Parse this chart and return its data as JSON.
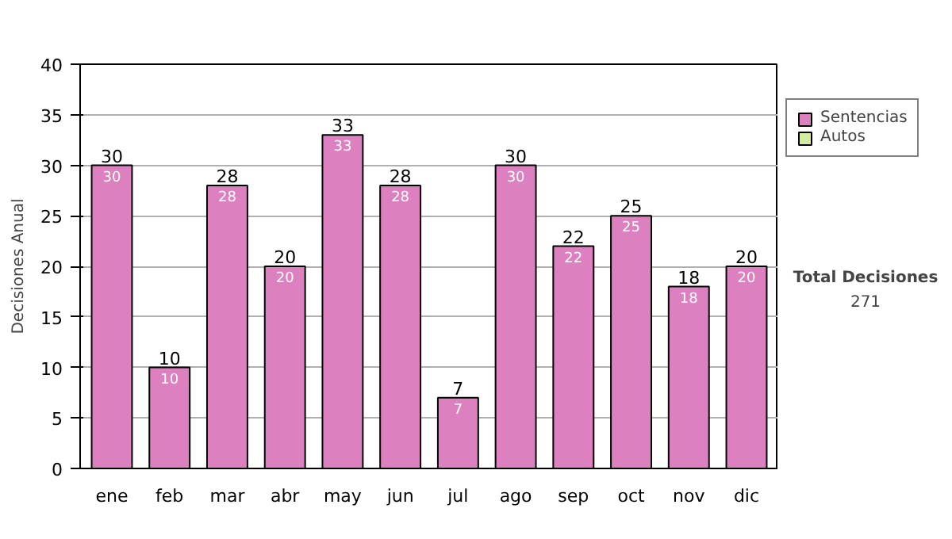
{
  "chart_data": {
    "type": "bar",
    "ylabel": "Decisiones Anual",
    "categories": [
      "ene",
      "feb",
      "mar",
      "abr",
      "may",
      "jun",
      "jul",
      "ago",
      "sep",
      "oct",
      "nov",
      "dic"
    ],
    "series": [
      {
        "name": "Sentencias",
        "color": "#dd80c0",
        "values": [
          30,
          10,
          28,
          20,
          33,
          28,
          7,
          30,
          22,
          25,
          18,
          20
        ]
      },
      {
        "name": "Autos",
        "color": "#d4eca0",
        "values": [
          null,
          null,
          null,
          null,
          null,
          null,
          null,
          null,
          null,
          null,
          null,
          null
        ]
      }
    ],
    "stacked": true,
    "data_labels": true,
    "totals": [
      "30",
      "10",
      "28",
      "20",
      "33",
      "28",
      "7",
      "30",
      "22",
      "25",
      "18",
      "20"
    ],
    "ylim": [
      0,
      40
    ],
    "yticks": [
      0,
      5,
      10,
      15,
      20,
      25,
      30,
      35,
      40
    ],
    "grid": "y",
    "legend": "right",
    "annotations": [
      "Total Decisiones",
      "271"
    ]
  }
}
